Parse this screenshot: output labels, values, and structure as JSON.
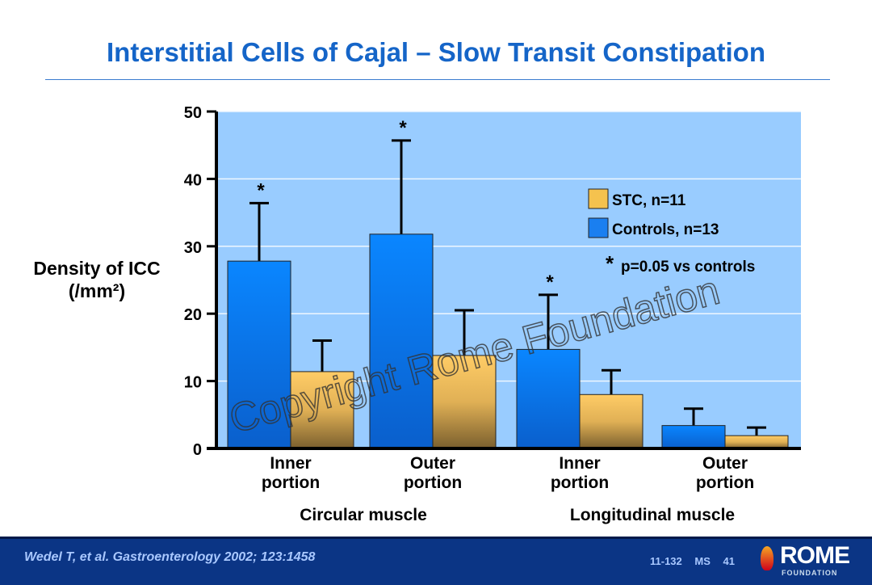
{
  "title": "Interstitial Cells of Cajal – Slow Transit Constipation",
  "footer": {
    "citation": "Wedel T, et al. Gastroenterology 2002; 123:1458",
    "code": "11-132 MS 41",
    "logo": "ROME FOUNDATION"
  },
  "watermark": "Copyright Rome Foundation",
  "chart_data": {
    "type": "bar",
    "ylabel": [
      "Density of ICC",
      "(/mm²)"
    ],
    "ylim": [
      0,
      50
    ],
    "yticks": [
      0,
      10,
      20,
      30,
      40,
      50
    ],
    "categories": [
      [
        "Inner",
        "portion"
      ],
      [
        "Outer",
        "portion"
      ],
      [
        "Inner",
        "portion"
      ],
      [
        "Outer",
        "portion"
      ]
    ],
    "groups": [
      "Circular muscle",
      "Longitudinal muscle"
    ],
    "series": [
      {
        "name": "Controls, n=13",
        "color": "#1a7ff0",
        "values": [
          27.8,
          31.8,
          14.7,
          3.4
        ],
        "error_top": [
          36.4,
          45.7,
          22.8,
          5.9
        ],
        "significant": [
          true,
          true,
          true,
          false
        ]
      },
      {
        "name": "STC, n=11",
        "color": "#f5c24e",
        "values": [
          11.4,
          13.8,
          8.0,
          1.9
        ],
        "error_top": [
          16.0,
          20.5,
          11.6,
          3.1
        ]
      }
    ],
    "annotation": "p=0.05 vs controls",
    "annotation_marker": "*",
    "grid": true,
    "legend": "right",
    "background": "#99ccff"
  }
}
